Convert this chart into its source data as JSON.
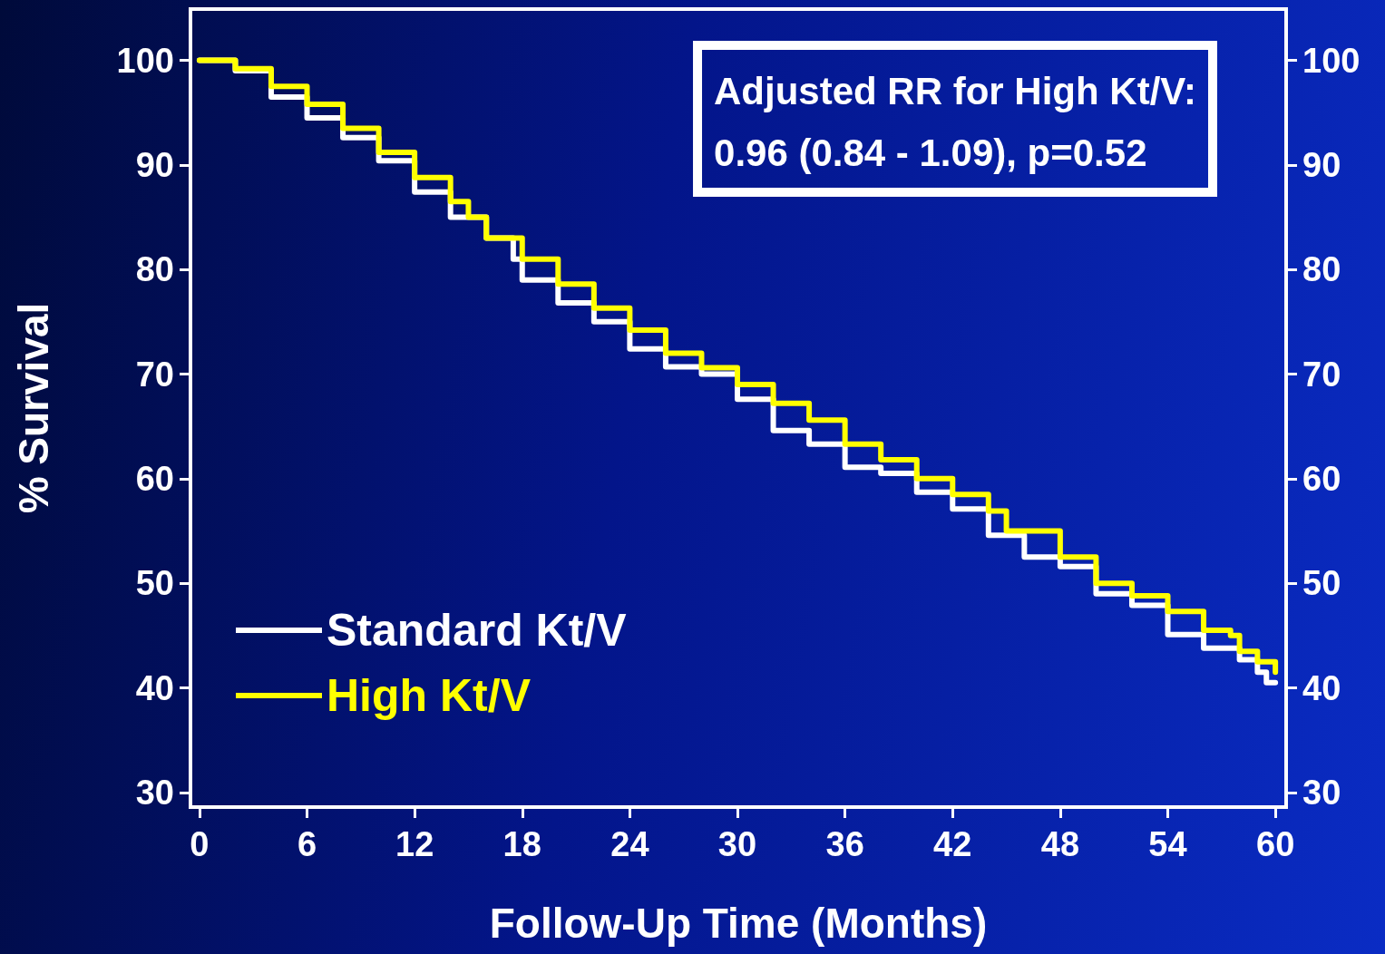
{
  "chart_data": {
    "type": "step",
    "xlabel": "Follow-Up Time (Months)",
    "ylabel": "% Survival",
    "annotations": [
      "Adjusted RR for High Kt/V:\n0.96 (0.84 - 1.09), p=0.52"
    ],
    "xlim": [
      -0.5,
      60.6
    ],
    "xticks": [
      0,
      6,
      12,
      18,
      24,
      30,
      36,
      42,
      48,
      54,
      60
    ],
    "ylim": [
      28.6,
      104.9
    ],
    "yticks": [
      30,
      40,
      50,
      60,
      70,
      80,
      90,
      100
    ],
    "y2lim": [
      28.6,
      104.9
    ],
    "y2ticks": [
      30,
      40,
      50,
      60,
      70,
      80,
      90,
      100
    ],
    "grid": false,
    "legend": "bottom left",
    "marker": "none",
    "line_style": "solid",
    "series": [
      {
        "name": "Standard Kt/V",
        "color": "#ffffff",
        "x": [
          0,
          2,
          4,
          6,
          8,
          10,
          12,
          14,
          16,
          17.5,
          18,
          20,
          22,
          24,
          26,
          28,
          30,
          32,
          34,
          36,
          38,
          40,
          42,
          44,
          46,
          48,
          50,
          52,
          54,
          56,
          58,
          59,
          59.5,
          60
        ],
        "values": [
          100,
          99,
          96.5,
          94.5,
          92.6,
          90.4,
          87.4,
          85,
          83,
          81,
          79,
          76.8,
          75,
          72.4,
          70.7,
          70,
          67.6,
          64.6,
          63.3,
          61.1,
          60.5,
          58.7,
          57.1,
          54.6,
          52.5,
          51.6,
          49,
          47.9,
          45.1,
          43.8,
          42.7,
          41.5,
          40.5,
          40.5
        ]
      },
      {
        "name": "High Kt/V",
        "color": "#ffff00",
        "x": [
          0,
          2,
          4,
          6,
          8,
          10,
          12,
          14,
          15,
          16,
          18,
          20,
          22,
          24,
          26,
          28,
          30,
          32,
          34,
          36,
          38,
          40,
          42,
          44,
          45,
          48,
          50,
          52,
          54,
          56,
          57.5,
          58,
          59,
          60
        ],
        "values": [
          100,
          99.2,
          97.5,
          95.8,
          93.5,
          91.2,
          88.8,
          86.5,
          85,
          83,
          81,
          78.6,
          76.3,
          74.2,
          72,
          70.6,
          69,
          67.2,
          65.6,
          63.3,
          61.8,
          60,
          58.5,
          56.9,
          55,
          52.5,
          50,
          48.8,
          47.3,
          45.5,
          45,
          43.5,
          42.5,
          41.5
        ]
      }
    ]
  }
}
